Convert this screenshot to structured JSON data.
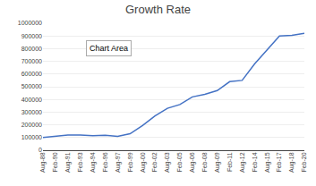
{
  "chart_data": {
    "type": "line",
    "title": "Growth Rate",
    "categories": [
      "Aug-88",
      "Feb-90",
      "Aug-91",
      "Feb-93",
      "Aug-94",
      "Feb-96",
      "Aug-97",
      "Feb-99",
      "Aug-00",
      "Feb-02",
      "Aug-03",
      "Feb-05",
      "Aug-06",
      "Feb-08",
      "Aug-09",
      "Feb-11",
      "Aug-12",
      "Feb-14",
      "Aug-15",
      "Feb-17",
      "Aug-18",
      "Feb-20"
    ],
    "values": [
      100000,
      110000,
      120000,
      120000,
      115000,
      118000,
      110000,
      130000,
      195000,
      270000,
      330000,
      360000,
      420000,
      440000,
      470000,
      540000,
      550000,
      680000,
      790000,
      900000,
      905000,
      920000
    ],
    "color": "#4472C4",
    "ylim": [
      0,
      1000000
    ],
    "yticks": [
      0,
      100000,
      200000,
      300000,
      400000,
      500000,
      600000,
      700000,
      800000,
      900000,
      1000000
    ],
    "grid": true,
    "annotations": [
      "Chart Area"
    ]
  }
}
